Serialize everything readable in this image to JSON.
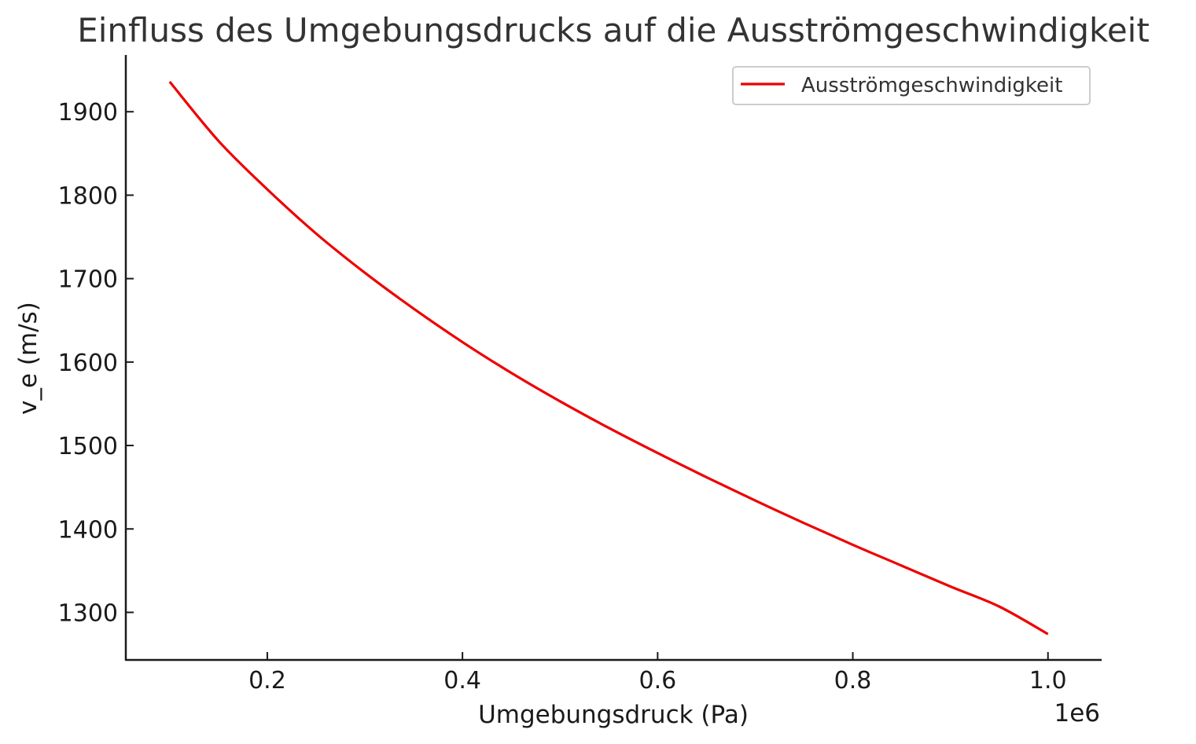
{
  "chart_data": {
    "type": "line",
    "title": "Einfluss des Umgebungsdrucks auf die Ausströmgeschwindigkeit",
    "xlabel": "Umgebungsdruck (Pa)",
    "ylabel": "v_e (m/s)",
    "x_offset_label": "1e6",
    "xlim": [
      0.055,
      1.055
    ],
    "ylim": [
      1243,
      1968
    ],
    "x_ticks": [
      0.2,
      0.4,
      0.6,
      0.8,
      1.0
    ],
    "x_tick_labels": [
      "0.2",
      "0.4",
      "0.6",
      "0.8",
      "1.0"
    ],
    "y_ticks": [
      1300,
      1400,
      1500,
      1600,
      1700,
      1800,
      1900
    ],
    "y_tick_labels": [
      "1300",
      "1400",
      "1500",
      "1600",
      "1700",
      "1800",
      "1900"
    ],
    "grid": false,
    "legend_position": "top-right",
    "series": [
      {
        "name": "Ausströmgeschwindigkeit",
        "color": "#ee0000",
        "x": [
          0.1,
          0.15,
          0.2,
          0.25,
          0.3,
          0.35,
          0.4,
          0.45,
          0.5,
          0.55,
          0.6,
          0.65,
          0.7,
          0.75,
          0.8,
          0.85,
          0.9,
          0.95,
          1.0
        ],
        "y": [
          1936,
          1865,
          1807,
          1754,
          1707,
          1664,
          1624,
          1587,
          1553,
          1521,
          1491,
          1462,
          1434,
          1407,
          1381,
          1356,
          1331,
          1307,
          1274
        ]
      }
    ]
  }
}
